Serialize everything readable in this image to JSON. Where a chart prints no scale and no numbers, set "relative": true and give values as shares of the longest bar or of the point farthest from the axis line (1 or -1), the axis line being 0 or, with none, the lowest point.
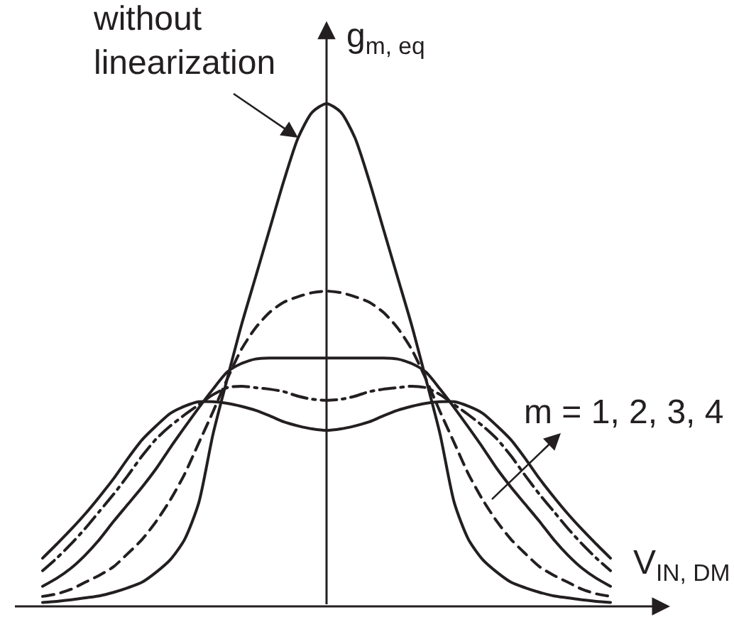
{
  "chart_data": {
    "type": "line",
    "relative": true,
    "xlabel": "V$_{IN, DM}$",
    "ylabel": "g$_{m, eq}$",
    "annotations": [
      "without\nlinearization",
      "m = 1, 2, 3, 4"
    ],
    "categories": [
      null,
      null,
      null,
      null,
      null,
      null,
      null,
      null,
      null,
      null,
      null,
      null,
      null,
      null,
      null,
      null,
      null,
      null,
      null,
      null,
      null,
      null,
      null,
      null,
      null,
      null,
      null,
      null,
      null,
      null,
      null,
      null,
      null,
      null,
      null,
      null,
      null,
      null,
      null,
      null,
      null
    ],
    "series": [
      {
        "color": "#231f20",
        "line_style": "solid",
        "values": [
          0.008,
          0.01,
          0.013,
          0.017,
          0.021,
          0.028,
          0.037,
          0.048,
          0.068,
          0.093,
          0.133,
          0.206,
          0.342,
          0.452,
          0.559,
          0.655,
          0.751,
          0.847,
          0.932,
          0.983,
          1,
          0.983,
          0.932,
          0.847,
          0.751,
          0.655,
          0.559,
          0.452,
          0.342,
          0.206,
          0.133,
          0.093,
          0.068,
          0.048,
          0.037,
          0.028,
          0.021,
          0.017,
          0.013,
          0.01,
          0.008
        ]
      },
      {
        "color": "#231f20",
        "line_style": "dashed",
        "values": [
          0.02,
          0.025,
          0.034,
          0.048,
          0.062,
          0.079,
          0.105,
          0.133,
          0.169,
          0.212,
          0.263,
          0.325,
          0.387,
          0.452,
          0.511,
          0.554,
          0.585,
          0.605,
          0.616,
          0.624,
          0.627,
          0.624,
          0.616,
          0.605,
          0.585,
          0.554,
          0.511,
          0.452,
          0.387,
          0.325,
          0.263,
          0.212,
          0.169,
          0.133,
          0.105,
          0.079,
          0.062,
          0.048,
          0.034,
          0.025,
          0.02
        ]
      },
      {
        "color": "#231f20",
        "line_style": "solid",
        "values": [
          0.04,
          0.056,
          0.076,
          0.102,
          0.133,
          0.169,
          0.203,
          0.237,
          0.274,
          0.316,
          0.356,
          0.395,
          0.432,
          0.466,
          0.483,
          0.492,
          0.494,
          0.494,
          0.494,
          0.494,
          0.494,
          0.494,
          0.494,
          0.494,
          0.494,
          0.492,
          0.483,
          0.466,
          0.432,
          0.395,
          0.356,
          0.316,
          0.274,
          0.237,
          0.203,
          0.169,
          0.133,
          0.102,
          0.076,
          0.056,
          0.04
        ]
      },
      {
        "color": "#231f20",
        "line_style": "dashdot",
        "values": [
          0.071,
          0.096,
          0.124,
          0.155,
          0.189,
          0.223,
          0.26,
          0.299,
          0.333,
          0.359,
          0.381,
          0.401,
          0.421,
          0.435,
          0.438,
          0.435,
          0.432,
          0.427,
          0.418,
          0.412,
          0.41,
          0.412,
          0.418,
          0.427,
          0.432,
          0.435,
          0.438,
          0.435,
          0.421,
          0.401,
          0.381,
          0.359,
          0.333,
          0.299,
          0.26,
          0.223,
          0.189,
          0.155,
          0.124,
          0.096,
          0.071
        ]
      },
      {
        "color": "#231f20",
        "line_style": "solid",
        "values": [
          0.096,
          0.124,
          0.153,
          0.184,
          0.218,
          0.254,
          0.294,
          0.331,
          0.359,
          0.384,
          0.398,
          0.407,
          0.407,
          0.404,
          0.398,
          0.39,
          0.379,
          0.367,
          0.359,
          0.353,
          0.35,
          0.353,
          0.359,
          0.367,
          0.379,
          0.39,
          0.398,
          0.404,
          0.407,
          0.407,
          0.398,
          0.384,
          0.359,
          0.331,
          0.294,
          0.254,
          0.218,
          0.184,
          0.153,
          0.124,
          0.096
        ]
      }
    ],
    "marker": "none"
  }
}
